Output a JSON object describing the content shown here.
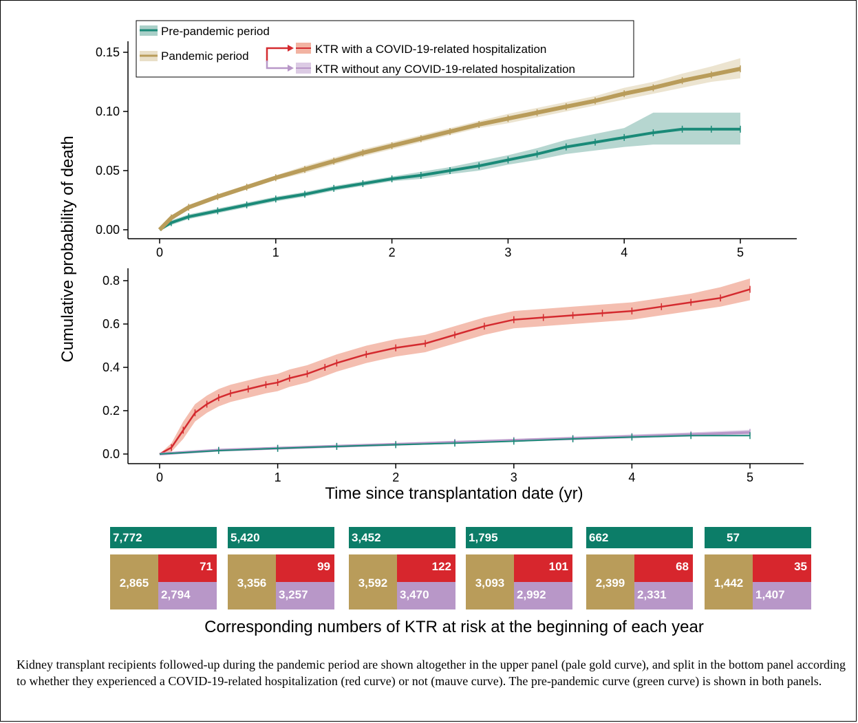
{
  "colors": {
    "prepandemic": "#1a8a78",
    "prepandemic_band": "#a9cfc8",
    "pandemic": "#b99c5a",
    "pandemic_band": "#e9dfc8",
    "covid_hosp": "#d42a2f",
    "covid_hosp_band": "#f2b3a2",
    "no_covid_hosp": "#b897c8",
    "no_covid_hosp_band": "#dccbe4",
    "risk_green": "#0c7d68",
    "risk_gold": "#b99c5a",
    "risk_red": "#d7262d",
    "risk_mauve": "#b897c8"
  },
  "chart_data": [
    {
      "type": "line",
      "panel": "top",
      "ylabel": "Cumulative probability of death",
      "xlim": [
        0,
        5
      ],
      "ylim": [
        0,
        0.15
      ],
      "x_ticks": [
        0,
        1,
        2,
        3,
        4,
        5
      ],
      "y_ticks": [
        "0.00",
        "0.05",
        "0.10",
        "0.15"
      ],
      "legend": {
        "placement": "top-left",
        "entries": [
          "Pre-pandemic period",
          "Pandemic period",
          "KTR with a COVID-19-related hospitalization",
          "KTR without any COVID-19-related hospitalization"
        ]
      },
      "series": [
        {
          "name": "Pre-pandemic period",
          "x": [
            0,
            0.1,
            0.25,
            0.5,
            0.75,
            1,
            1.25,
            1.5,
            1.75,
            2,
            2.25,
            2.5,
            2.75,
            3,
            3.25,
            3.5,
            3.75,
            4,
            4.25,
            4.5,
            4.75,
            5
          ],
          "y": [
            0,
            0.006,
            0.011,
            0.016,
            0.021,
            0.026,
            0.03,
            0.035,
            0.039,
            0.043,
            0.046,
            0.05,
            0.054,
            0.059,
            0.064,
            0.07,
            0.074,
            0.078,
            0.082,
            0.085,
            0.085,
            0.085
          ],
          "lower": [
            0,
            0.004,
            0.009,
            0.014,
            0.019,
            0.024,
            0.028,
            0.033,
            0.037,
            0.041,
            0.043,
            0.047,
            0.05,
            0.055,
            0.059,
            0.064,
            0.067,
            0.07,
            0.072,
            0.072,
            0.072,
            0.072
          ],
          "upper": [
            0,
            0.008,
            0.013,
            0.018,
            0.023,
            0.028,
            0.032,
            0.037,
            0.041,
            0.045,
            0.049,
            0.053,
            0.058,
            0.063,
            0.069,
            0.076,
            0.081,
            0.086,
            0.099,
            0.099,
            0.099,
            0.099
          ]
        },
        {
          "name": "Pandemic period",
          "x": [
            0,
            0.1,
            0.25,
            0.5,
            0.75,
            1,
            1.25,
            1.5,
            1.75,
            2,
            2.25,
            2.5,
            2.75,
            3,
            3.25,
            3.5,
            3.75,
            4,
            4.25,
            4.5,
            4.75,
            5
          ],
          "y": [
            0,
            0.01,
            0.019,
            0.028,
            0.036,
            0.044,
            0.051,
            0.058,
            0.065,
            0.071,
            0.077,
            0.083,
            0.089,
            0.094,
            0.099,
            0.104,
            0.109,
            0.115,
            0.12,
            0.126,
            0.131,
            0.136
          ],
          "lower": [
            0,
            0.008,
            0.017,
            0.026,
            0.034,
            0.042,
            0.048,
            0.055,
            0.062,
            0.068,
            0.074,
            0.08,
            0.086,
            0.09,
            0.095,
            0.1,
            0.105,
            0.11,
            0.115,
            0.12,
            0.125,
            0.128
          ],
          "upper": [
            0,
            0.012,
            0.021,
            0.03,
            0.038,
            0.046,
            0.054,
            0.061,
            0.068,
            0.074,
            0.08,
            0.086,
            0.092,
            0.098,
            0.103,
            0.108,
            0.113,
            0.12,
            0.125,
            0.132,
            0.138,
            0.145
          ]
        }
      ]
    },
    {
      "type": "line",
      "panel": "bottom",
      "xlabel": "Time since transplantation date (yr)",
      "ylabel": "Cumulative probability of death",
      "xlim": [
        0,
        5
      ],
      "ylim": [
        0,
        0.8
      ],
      "x_ticks": [
        0,
        1,
        2,
        3,
        4,
        5
      ],
      "y_ticks": [
        "0.0",
        "0.2",
        "0.4",
        "0.6",
        "0.8"
      ],
      "series": [
        {
          "name": "KTR with a COVID-19-related hospitalization",
          "x": [
            0,
            0.1,
            0.2,
            0.3,
            0.4,
            0.5,
            0.6,
            0.75,
            0.9,
            1,
            1.1,
            1.25,
            1.4,
            1.5,
            1.75,
            2,
            2.25,
            2.5,
            2.75,
            3,
            3.25,
            3.5,
            3.75,
            4,
            4.25,
            4.5,
            4.75,
            5
          ],
          "y": [
            0,
            0.03,
            0.11,
            0.19,
            0.23,
            0.26,
            0.28,
            0.3,
            0.32,
            0.33,
            0.35,
            0.37,
            0.4,
            0.42,
            0.46,
            0.49,
            0.51,
            0.55,
            0.59,
            0.62,
            0.63,
            0.64,
            0.65,
            0.66,
            0.68,
            0.7,
            0.72,
            0.76
          ],
          "lower": [
            0,
            0.01,
            0.07,
            0.15,
            0.19,
            0.22,
            0.24,
            0.26,
            0.28,
            0.29,
            0.31,
            0.33,
            0.36,
            0.38,
            0.42,
            0.45,
            0.47,
            0.51,
            0.55,
            0.58,
            0.59,
            0.6,
            0.61,
            0.62,
            0.64,
            0.66,
            0.68,
            0.71
          ],
          "upper": [
            0,
            0.05,
            0.15,
            0.23,
            0.27,
            0.3,
            0.32,
            0.34,
            0.36,
            0.37,
            0.39,
            0.41,
            0.44,
            0.46,
            0.5,
            0.53,
            0.55,
            0.59,
            0.63,
            0.66,
            0.67,
            0.68,
            0.69,
            0.7,
            0.72,
            0.74,
            0.77,
            0.81
          ]
        },
        {
          "name": "KTR without any COVID-19-related hospitalization",
          "x": [
            0,
            0.5,
            1,
            1.5,
            2,
            2.5,
            3,
            3.5,
            4,
            4.5,
            5
          ],
          "y": [
            0,
            0.018,
            0.027,
            0.036,
            0.045,
            0.054,
            0.063,
            0.072,
            0.081,
            0.09,
            0.1
          ],
          "lower": [
            0,
            0.013,
            0.021,
            0.03,
            0.039,
            0.047,
            0.056,
            0.064,
            0.072,
            0.08,
            0.088
          ],
          "upper": [
            0,
            0.023,
            0.033,
            0.042,
            0.051,
            0.061,
            0.07,
            0.08,
            0.09,
            0.1,
            0.112
          ]
        },
        {
          "name": "Pre-pandemic period",
          "x": [
            0,
            0.5,
            1,
            1.5,
            2,
            2.5,
            3,
            3.5,
            4,
            4.5,
            5
          ],
          "y": [
            0,
            0.016,
            0.026,
            0.035,
            0.043,
            0.05,
            0.059,
            0.07,
            0.078,
            0.085,
            0.085
          ]
        }
      ]
    },
    {
      "type": "table",
      "title": "Corresponding numbers of KTR at risk at the beginning of each year",
      "years": [
        0,
        1,
        2,
        3,
        4,
        5
      ],
      "pre_pandemic": [
        "7,772",
        "5,420",
        "3,452",
        "1,795",
        "662",
        "57"
      ],
      "pandemic": [
        "2,865",
        "3,356",
        "3,592",
        "3,093",
        "2,399",
        "1,442"
      ],
      "with_covid_hospitalization": [
        "71",
        "99",
        "122",
        "101",
        "68",
        "35"
      ],
      "without_covid_hospitalization": [
        "2,794",
        "3,257",
        "3,470",
        "2,992",
        "2,331",
        "1,407"
      ]
    }
  ],
  "caption": "Kidney transplant recipients followed-up during the pandemic period are shown altogether in the upper panel (pale gold curve), and split in the bottom panel according to whether they experienced a COVID-19-related hospitalization (red curve) or not (mauve curve). The pre-pandemic curve (green curve) is shown in both panels."
}
